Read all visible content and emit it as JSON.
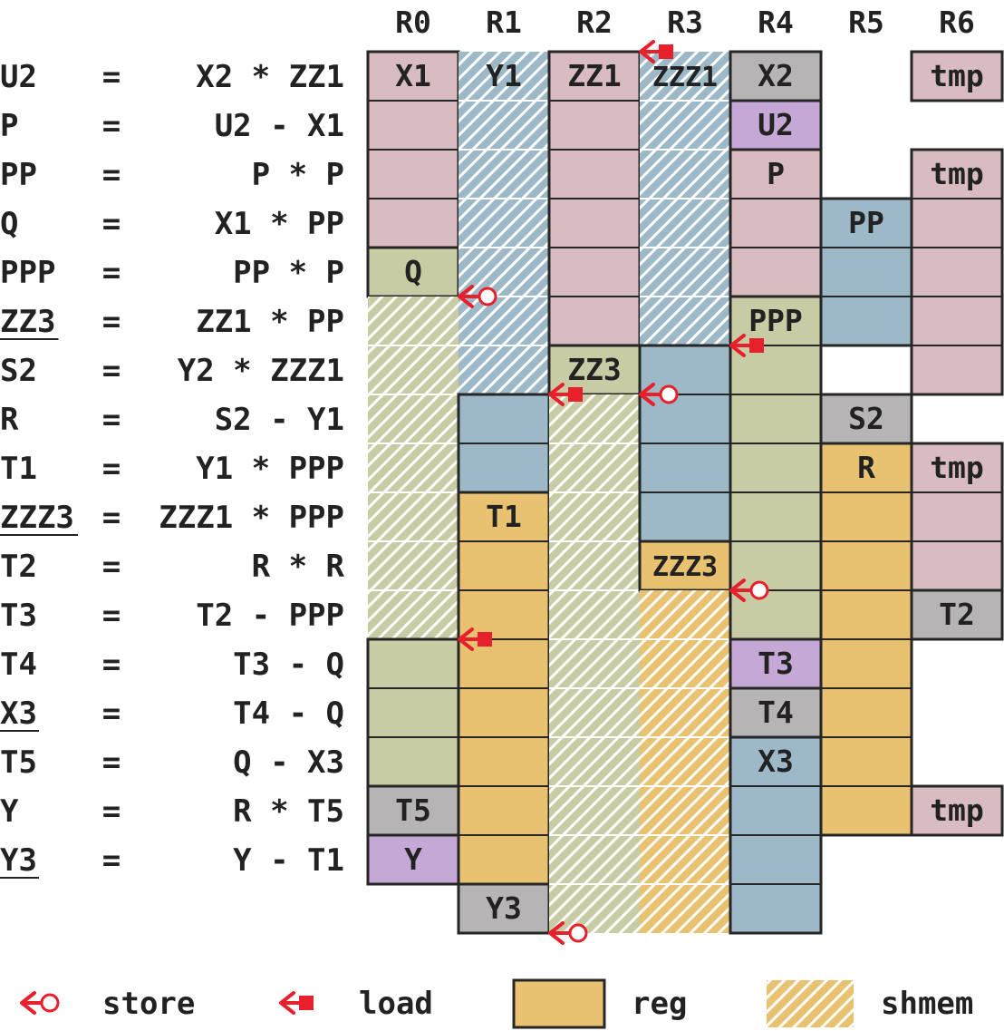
{
  "registers": [
    "R0",
    "R1",
    "R2",
    "R3",
    "R4",
    "R5",
    "R6"
  ],
  "colors": {
    "pink": "#d8bcbf",
    "blue": "#9db8c7",
    "olive": "#c8cca4",
    "orange": "#e8c270",
    "gray": "#b6b4b4",
    "purple": "#c5a8d6",
    "arrow": "#e8202c",
    "border": "#262626"
  },
  "equations": [
    {
      "lhs": "U2",
      "rhs": "X2 * ZZ1",
      "underline": false
    },
    {
      "lhs": "P",
      "rhs": "U2 - X1",
      "underline": false
    },
    {
      "lhs": "PP",
      "rhs": "P * P",
      "underline": false
    },
    {
      "lhs": "Q",
      "rhs": "X1 * PP",
      "underline": false
    },
    {
      "lhs": "PPP",
      "rhs": "PP * P",
      "underline": false
    },
    {
      "lhs": "ZZ3",
      "rhs": "ZZ1 * PP",
      "underline": true
    },
    {
      "lhs": "S2",
      "rhs": "Y2 * ZZZ1",
      "underline": false
    },
    {
      "lhs": "R",
      "rhs": "S2 - Y1",
      "underline": false
    },
    {
      "lhs": "T1",
      "rhs": "Y1 * PPP",
      "underline": false
    },
    {
      "lhs": "ZZZ3",
      "rhs": "ZZZ1 * PPP",
      "underline": true
    },
    {
      "lhs": "T2",
      "rhs": "R * R",
      "underline": false
    },
    {
      "lhs": "T3",
      "rhs": "T2 - PPP",
      "underline": false
    },
    {
      "lhs": "T4",
      "rhs": "T3 - Q",
      "underline": false
    },
    {
      "lhs": "X3",
      "rhs": "T4 - Q",
      "underline": true
    },
    {
      "lhs": "T5",
      "rhs": "Q - X3",
      "underline": false
    },
    {
      "lhs": "Y",
      "rhs": "R * T5",
      "underline": false
    },
    {
      "lhs": "Y3",
      "rhs": "Y - T1",
      "underline": true
    }
  ],
  "eq_sign": "=",
  "blocks": [
    {
      "col": 0,
      "row0": 0,
      "row1": 4,
      "color": "pink",
      "kind": "reg",
      "label": "X1",
      "labelRow": 0
    },
    {
      "col": 0,
      "row0": 4,
      "row1": 5,
      "color": "olive",
      "kind": "reg",
      "label": "Q",
      "labelRow": 4
    },
    {
      "col": 0,
      "row0": 5,
      "row1": 12,
      "color": "olive",
      "kind": "shmem",
      "label": "",
      "labelRow": 5
    },
    {
      "col": 0,
      "row0": 12,
      "row1": 15,
      "color": "olive",
      "kind": "reg",
      "label": "",
      "labelRow": 12
    },
    {
      "col": 0,
      "row0": 15,
      "row1": 16,
      "color": "gray",
      "kind": "reg",
      "label": "T5",
      "labelRow": 15
    },
    {
      "col": 0,
      "row0": 16,
      "row1": 17,
      "color": "purple",
      "kind": "reg",
      "label": "Y",
      "labelRow": 16
    },
    {
      "col": 1,
      "row0": 0,
      "row1": 7,
      "color": "blue",
      "kind": "shmem",
      "label": "Y1",
      "labelRow": 0
    },
    {
      "col": 1,
      "row0": 7,
      "row1": 9,
      "color": "blue",
      "kind": "reg",
      "label": "",
      "labelRow": 7
    },
    {
      "col": 1,
      "row0": 9,
      "row1": 17,
      "color": "orange",
      "kind": "reg",
      "label": "T1",
      "labelRow": 9
    },
    {
      "col": 1,
      "row0": 17,
      "row1": 18,
      "color": "gray",
      "kind": "reg",
      "label": "Y3",
      "labelRow": 17
    },
    {
      "col": 2,
      "row0": 0,
      "row1": 6,
      "color": "pink",
      "kind": "reg",
      "label": "ZZ1",
      "labelRow": 0
    },
    {
      "col": 2,
      "row0": 6,
      "row1": 7,
      "color": "olive",
      "kind": "reg",
      "label": "ZZ3",
      "labelRow": 6
    },
    {
      "col": 2,
      "row0": 7,
      "row1": 18,
      "color": "olive",
      "kind": "shmem",
      "label": "",
      "labelRow": 7
    },
    {
      "col": 3,
      "row0": 0,
      "row1": 6,
      "color": "blue",
      "kind": "shmem",
      "label": "ZZZ1",
      "labelRow": 0
    },
    {
      "col": 3,
      "row0": 6,
      "row1": 10,
      "color": "blue",
      "kind": "reg",
      "label": "",
      "labelRow": 6
    },
    {
      "col": 3,
      "row0": 10,
      "row1": 11,
      "color": "orange",
      "kind": "reg",
      "label": "ZZZ3",
      "labelRow": 10
    },
    {
      "col": 3,
      "row0": 11,
      "row1": 18,
      "color": "orange",
      "kind": "shmem",
      "label": "",
      "labelRow": 11
    },
    {
      "col": 4,
      "row0": 0,
      "row1": 1,
      "color": "gray",
      "kind": "reg",
      "label": "X2",
      "labelRow": 0
    },
    {
      "col": 4,
      "row0": 1,
      "row1": 2,
      "color": "purple",
      "kind": "reg",
      "label": "U2",
      "labelRow": 1
    },
    {
      "col": 4,
      "row0": 2,
      "row1": 5,
      "color": "pink",
      "kind": "reg",
      "label": "P",
      "labelRow": 2
    },
    {
      "col": 4,
      "row0": 5,
      "row1": 12,
      "color": "olive",
      "kind": "reg",
      "label": "PPP",
      "labelRow": 5
    },
    {
      "col": 4,
      "row0": 12,
      "row1": 13,
      "color": "purple",
      "kind": "reg",
      "label": "T3",
      "labelRow": 12
    },
    {
      "col": 4,
      "row0": 13,
      "row1": 14,
      "color": "gray",
      "kind": "reg",
      "label": "T4",
      "labelRow": 13
    },
    {
      "col": 4,
      "row0": 14,
      "row1": 18,
      "color": "blue",
      "kind": "reg",
      "label": "X3",
      "labelRow": 14
    },
    {
      "col": 5,
      "row0": 3,
      "row1": 6,
      "color": "blue",
      "kind": "reg",
      "label": "PP",
      "labelRow": 3
    },
    {
      "col": 5,
      "row0": 7,
      "row1": 8,
      "color": "gray",
      "kind": "reg",
      "label": "S2",
      "labelRow": 7
    },
    {
      "col": 5,
      "row0": 8,
      "row1": 16,
      "color": "orange",
      "kind": "reg",
      "label": "R",
      "labelRow": 8
    },
    {
      "col": 6,
      "row0": 0,
      "row1": 1,
      "color": "pink",
      "kind": "reg",
      "label": "tmp",
      "labelRow": 0
    },
    {
      "col": 6,
      "row0": 2,
      "row1": 7,
      "color": "pink",
      "kind": "reg",
      "label": "tmp",
      "labelRow": 2
    },
    {
      "col": 6,
      "row0": 8,
      "row1": 11,
      "color": "pink",
      "kind": "reg",
      "label": "tmp",
      "labelRow": 8
    },
    {
      "col": 6,
      "row0": 11,
      "row1": 12,
      "color": "gray",
      "kind": "reg",
      "label": "T2",
      "labelRow": 11
    },
    {
      "col": 6,
      "row0": 15,
      "row1": 16,
      "color": "pink",
      "kind": "reg",
      "label": "tmp",
      "labelRow": 15
    }
  ],
  "arrows": [
    {
      "type": "load",
      "col": 3,
      "row": 0
    },
    {
      "type": "store",
      "col": 1,
      "row": 5
    },
    {
      "type": "load",
      "col": 4,
      "row": 6
    },
    {
      "type": "load",
      "col": 2,
      "row": 7
    },
    {
      "type": "store",
      "col": 3,
      "row": 7
    },
    {
      "type": "store",
      "col": 4,
      "row": 11
    },
    {
      "type": "load",
      "col": 1,
      "row": 12
    },
    {
      "type": "store",
      "col": 2,
      "row": 18
    }
  ],
  "legend": {
    "store": "store",
    "load": "load",
    "reg": "reg",
    "shmem": "shmem"
  }
}
